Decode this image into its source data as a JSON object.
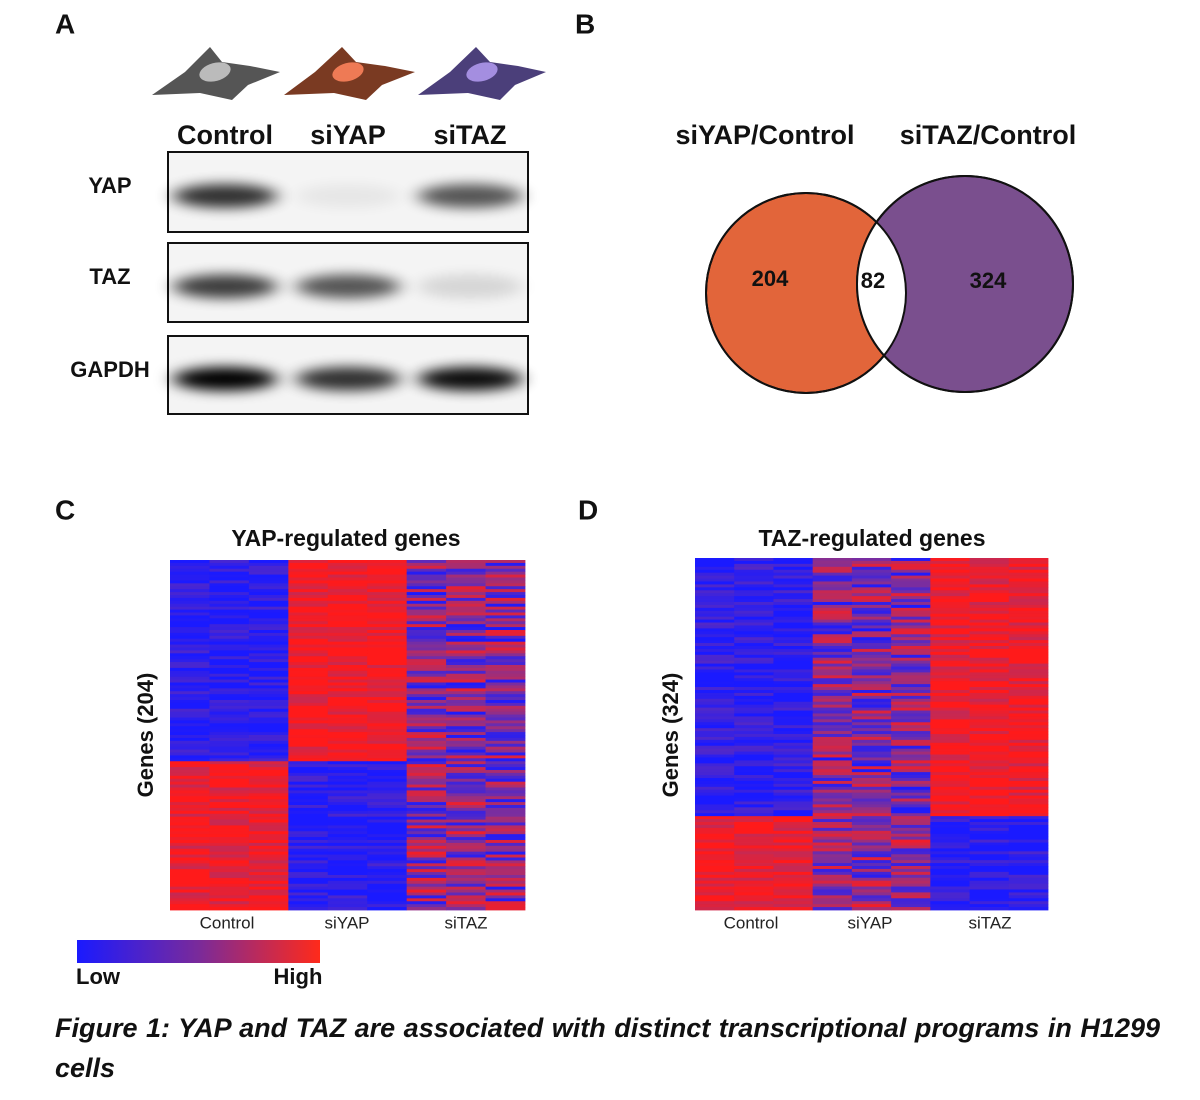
{
  "panels": {
    "a": {
      "label": "A",
      "conditions": [
        "Control",
        "siYAP",
        "siTAZ"
      ],
      "proteins": [
        "YAP",
        "TAZ",
        "GAPDH"
      ]
    },
    "b": {
      "label": "B",
      "sets": [
        "siYAP/Control",
        "siTAZ/Control"
      ],
      "counts": {
        "left": 204,
        "overlap": 82,
        "right": 324
      }
    },
    "c": {
      "label": "C",
      "title": "YAP-regulated genes",
      "y_label": "Genes (204)",
      "x_labels": [
        "Control",
        "siYAP",
        "siTAZ"
      ]
    },
    "d": {
      "label": "D",
      "title": "TAZ-regulated genes",
      "y_label": "Genes (324)",
      "x_labels": [
        "Control",
        "siYAP",
        "siTAZ"
      ]
    }
  },
  "colorbar": {
    "low": "Low",
    "high": "High"
  },
  "caption": "Figure 1: YAP and TAZ are associated with distinct transcriptional programs in H1299 cells"
}
